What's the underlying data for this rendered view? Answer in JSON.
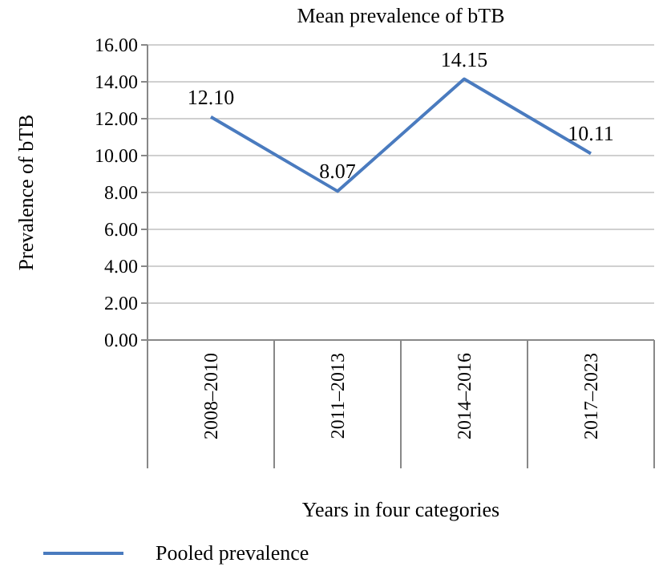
{
  "chart_data": {
    "type": "line",
    "title": "Mean prevalence of bTB",
    "xlabel": "Years in four categories",
    "ylabel": "Prevalence of bTB",
    "categories": [
      "2008–2010",
      "2011–2013",
      "2014–2016",
      "2017–2023"
    ],
    "series": [
      {
        "name": "Pooled prevalence",
        "color": "#4a7bbf",
        "values": [
          12.1,
          8.07,
          14.15,
          10.11
        ],
        "value_labels": [
          "12.10",
          "8.07",
          "14.15",
          "10.11"
        ]
      }
    ],
    "ylim": [
      0,
      16
    ],
    "yticks": [
      {
        "value": 0,
        "label": "0.00"
      },
      {
        "value": 2,
        "label": "2.00"
      },
      {
        "value": 4,
        "label": "4.00"
      },
      {
        "value": 6,
        "label": "6.00"
      },
      {
        "value": 8,
        "label": "8.00"
      },
      {
        "value": 10,
        "label": "10.00"
      },
      {
        "value": 12,
        "label": "12.00"
      },
      {
        "value": 14,
        "label": "14.00"
      },
      {
        "value": 16,
        "label": "16.00"
      }
    ],
    "grid": "y",
    "legend": "bottom left",
    "marker": "none",
    "line_style": "solid"
  }
}
